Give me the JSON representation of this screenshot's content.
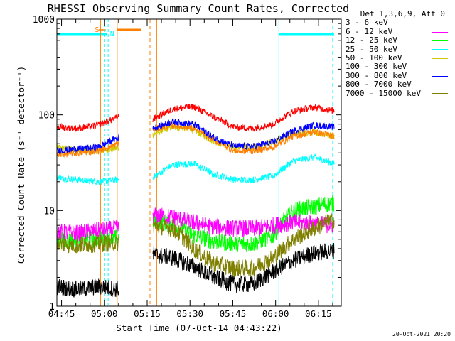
{
  "chart_data": {
    "type": "line",
    "title": "RHESSI Observing Summary Count Rates, Corrected",
    "xlabel": "Start Time (07-Oct-14 04:43:22)",
    "ylabel": "Corrected Count Rate (s⁻¹ detector⁻¹)",
    "yscale": "log",
    "ylim": [
      1,
      1000
    ],
    "xlim": [
      "04:43:22",
      "06:23:00"
    ],
    "x_tick_labels": [
      "04:45",
      "05:00",
      "05:15",
      "05:30",
      "05:45",
      "06:00",
      "06:15"
    ],
    "y_tick_labels": [
      "1",
      "10",
      "100",
      "1000"
    ],
    "legend_title": "Det 1,3,6,9, Att 0",
    "legend_position": "right-outside",
    "series": [
      {
        "name": "3 - 6 keV",
        "color": "#000000",
        "values_by_segment": [
          [
            1.6,
            1.5,
            1.6,
            1.5
          ],
          [
            3.5,
            3.2,
            2.6,
            2.0,
            1.7,
            1.7,
            2.3,
            3.0,
            3.6,
            3.8
          ]
        ]
      },
      {
        "name": "6 - 12 keV",
        "color": "#ff00ff",
        "values_by_segment": [
          [
            6.0,
            5.8,
            6.2,
            6.5
          ],
          [
            9.0,
            8.5,
            7.5,
            6.8,
            6.5,
            6.5,
            7.0,
            7.5,
            7.3,
            7.0
          ]
        ]
      },
      {
        "name": "12 - 25 keV",
        "color": "#00ff00",
        "values_by_segment": [
          [
            5.0,
            4.8,
            5.0,
            5.2
          ],
          [
            8.0,
            7.0,
            5.5,
            4.8,
            4.5,
            4.5,
            5.5,
            10.0,
            11.0,
            12.0
          ]
        ]
      },
      {
        "name": "25 - 50 keV",
        "color": "#00ffff",
        "values_by_segment": [
          [
            22,
            21,
            20,
            21
          ],
          [
            22,
            30,
            31,
            24,
            21,
            21,
            23,
            33,
            36,
            31
          ]
        ]
      },
      {
        "name": "50 - 100 keV",
        "color": "#cccc00",
        "values_by_segment": [
          [
            46,
            43,
            42,
            45
          ],
          [
            62,
            75,
            70,
            53,
            46,
            46,
            52,
            64,
            66,
            60
          ]
        ]
      },
      {
        "name": "100 - 300 keV",
        "color": "#ff0000",
        "values_by_segment": [
          [
            75,
            72,
            78,
            95
          ],
          [
            90,
            115,
            122,
            95,
            75,
            72,
            80,
            110,
            120,
            110
          ]
        ]
      },
      {
        "name": "300 - 800 keV",
        "color": "#0000ff",
        "values_by_segment": [
          [
            42,
            44,
            46,
            58
          ],
          [
            72,
            85,
            80,
            58,
            47,
            47,
            52,
            68,
            78,
            75
          ]
        ]
      },
      {
        "name": "800 - 7000 keV",
        "color": "#ff8000",
        "values_by_segment": [
          [
            38,
            40,
            42,
            50
          ],
          [
            70,
            78,
            72,
            55,
            42,
            42,
            46,
            60,
            66,
            60
          ]
        ]
      },
      {
        "name": "7000 - 15000 keV",
        "color": "#808000",
        "values_by_segment": [
          [
            4.5,
            4.3,
            4.5,
            4.6
          ],
          [
            7.0,
            6.5,
            4.0,
            2.8,
            2.5,
            2.5,
            3.2,
            5.0,
            6.5,
            8.0
          ]
        ]
      }
    ],
    "segments": [
      [
        "04:43:22",
        "05:05:00"
      ],
      [
        "05:17:00",
        "06:20:30"
      ]
    ],
    "annotations": {
      "saa_label": "S",
      "night_label": "N"
    }
  },
  "footer": {
    "stamp": "20-Oct-2021 20:20"
  }
}
